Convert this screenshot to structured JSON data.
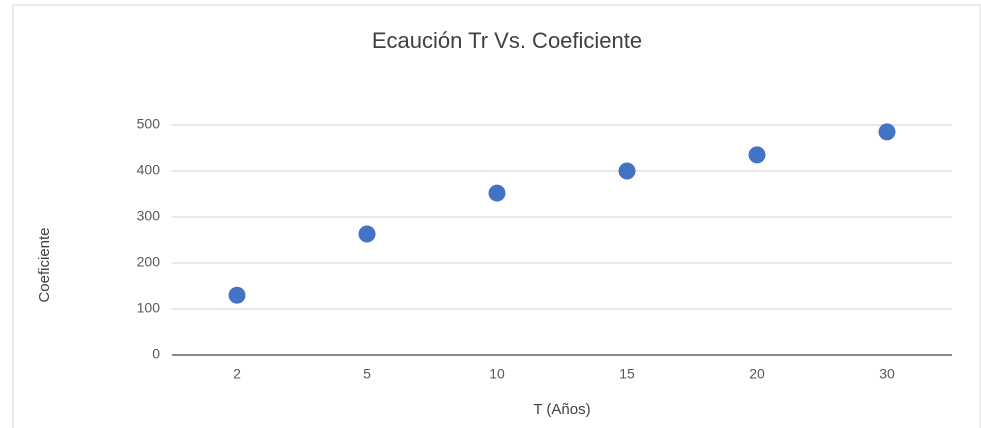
{
  "chart_data": {
    "type": "scatter",
    "title": "Ecaución Tr Vs. Coeficiente",
    "x_label": "T (Años)",
    "y_label": "Coeficiente",
    "categories": [
      "2",
      "5",
      "10",
      "15",
      "20",
      "30"
    ],
    "values": [
      130,
      263,
      352,
      400,
      435,
      485
    ],
    "color": "#4472c4",
    "ylim": [
      0,
      500
    ],
    "yticks": [
      0,
      100,
      200,
      300,
      400,
      500
    ],
    "grid": true
  }
}
